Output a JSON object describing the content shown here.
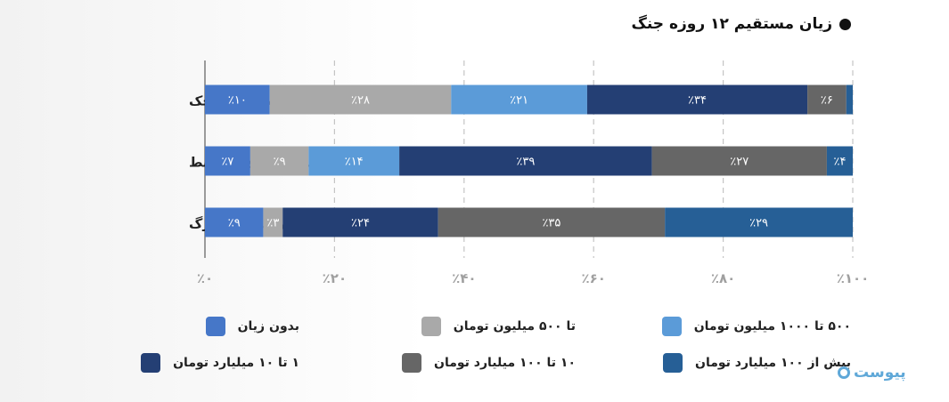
{
  "title": "زیان مستقیم ۱۲ روزه جنگ",
  "logo_text": "پیوست",
  "chart_data": {
    "type": "bar",
    "orientation": "horizontal",
    "stacked": true,
    "xlim": [
      0,
      100
    ],
    "x_ticks": [
      0,
      20,
      40,
      60,
      80,
      100
    ],
    "x_tick_labels": [
      "٪۰",
      "٪۲۰",
      "٪۴۰",
      "٪۶۰",
      "٪۸۰",
      "٪۱۰۰"
    ],
    "grid": "vertical-dashed",
    "legend_position": "bottom",
    "categories": [
      "شرکت‌های کوچک",
      "شرکت‌های متوسط",
      "شرکت‌های بزرگ"
    ],
    "series": [
      {
        "name": "بدون زیان",
        "color": "#4677c8",
        "values": [
          10,
          7,
          9
        ],
        "labels": [
          "٪۱۰",
          "٪۷",
          "٪۹"
        ]
      },
      {
        "name": "تا ۵۰۰ میلیون تومان",
        "color": "#a9a9a9",
        "values": [
          28,
          9,
          3
        ],
        "labels": [
          "٪۲۸",
          "٪۹",
          "٪۳"
        ]
      },
      {
        "name": "۵۰۰ تا ۱۰۰۰ میلیون تومان",
        "color": "#5b9bd8",
        "values": [
          21,
          14,
          0
        ],
        "labels": [
          "٪۲۱",
          "٪۱۴",
          ""
        ]
      },
      {
        "name": "۱ تا ۱۰ میلیارد تومان",
        "color": "#243f74",
        "values": [
          34,
          39,
          24
        ],
        "labels": [
          "٪۳۴",
          "٪۳۹",
          "٪۲۴"
        ]
      },
      {
        "name": "۱۰ تا ۱۰۰ میلیارد تومان",
        "color": "#666666",
        "values": [
          6,
          27,
          35
        ],
        "labels": [
          "٪۶",
          "٪۲۷",
          "٪۳۵"
        ]
      },
      {
        "name": "بیش از ۱۰۰ میلیارد تومان",
        "color": "#265f96",
        "values": [
          1,
          4,
          29
        ],
        "labels": [
          "",
          "٪۴",
          "٪۲۹"
        ]
      }
    ]
  }
}
